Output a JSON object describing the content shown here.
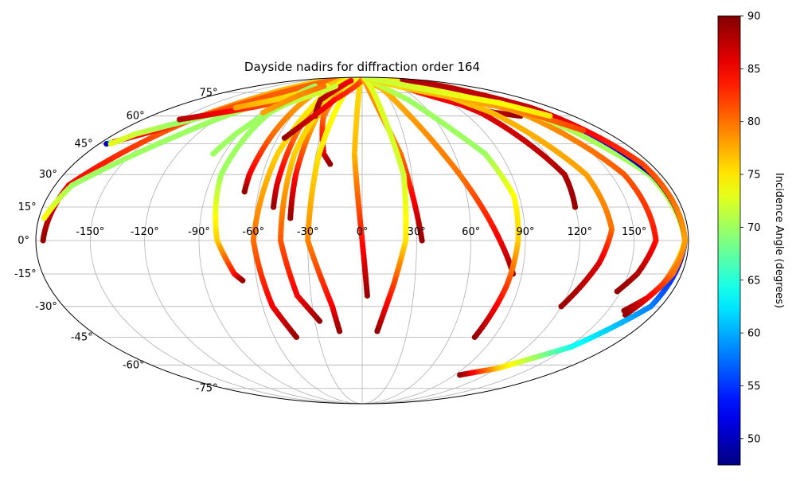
{
  "chart_data": {
    "type": "scatter",
    "projection": "mollweide",
    "title": "Dayside nadirs for diffraction order 164",
    "lon_ticks": [
      "-150°",
      "-120°",
      "-90°",
      "-60°",
      "-30°",
      "0°",
      "30°",
      "60°",
      "90°",
      "120°",
      "150°"
    ],
    "lon_tick_values": [
      -150,
      -120,
      -90,
      -60,
      -30,
      0,
      30,
      60,
      90,
      120,
      150
    ],
    "lat_ticks": [
      "-75°",
      "-60°",
      "-45°",
      "-30°",
      "-15°",
      "0°",
      "15°",
      "30°",
      "45°",
      "60°",
      "75°"
    ],
    "lat_tick_values": [
      -75,
      -60,
      -45,
      -30,
      -15,
      0,
      15,
      30,
      45,
      60,
      75
    ],
    "grid": true,
    "colormap": "jet",
    "colorbar": {
      "label": "Incidence Angle (degrees)",
      "min": 47.5,
      "max": 90,
      "ticks": [
        "50",
        "55",
        "60",
        "65",
        "70",
        "75",
        "80",
        "85",
        "90"
      ],
      "tick_values": [
        50,
        55,
        60,
        65,
        70,
        75,
        80,
        85,
        90
      ]
    },
    "series": [
      {
        "points": [
          [
            -1,
            90
          ],
          [
            30,
            78
          ],
          [
            60,
            28
          ],
          [
            76,
            0
          ],
          [
            85,
            -15
          ]
        ],
        "values": [
          75,
          77,
          80,
          85,
          89
        ]
      },
      {
        "points": [
          [
            -95,
            90
          ],
          [
            -140,
            58
          ],
          [
            -172,
            25
          ],
          [
            -176,
            0
          ]
        ],
        "values": [
          75,
          80,
          85,
          89
        ]
      },
      {
        "points": [
          [
            -65,
            90
          ],
          [
            -120,
            58
          ],
          [
            -170,
            25
          ],
          [
            -177,
            10
          ]
        ],
        "values": [
          73,
          70,
          70,
          74
        ]
      },
      {
        "points": [
          [
            -80,
            88
          ],
          [
            -145,
            55
          ],
          [
            -172,
            46
          ],
          [
            -175,
            45
          ]
        ],
        "values": [
          80,
          82,
          87,
          50
        ]
      },
      {
        "points": [
          [
            -80,
            80
          ],
          [
            -85,
            30
          ],
          [
            -80,
            0
          ],
          [
            -72,
            -15
          ],
          [
            -68,
            -18
          ]
        ],
        "values": [
          70,
          70,
          76,
          84,
          89
        ]
      },
      {
        "points": [
          [
            -58,
            88
          ],
          [
            -65,
            50
          ],
          [
            -68,
            30
          ],
          [
            -68,
            22
          ]
        ],
        "values": [
          76,
          80,
          85,
          89
        ]
      },
      {
        "points": [
          [
            -45,
            88
          ],
          [
            -48,
            50
          ],
          [
            -50,
            25
          ],
          [
            -50,
            15
          ]
        ],
        "values": [
          76,
          80,
          86,
          89
        ]
      },
      {
        "points": [
          [
            -42,
            88
          ],
          [
            -55,
            40
          ],
          [
            -60,
            0
          ],
          [
            -54,
            -30
          ],
          [
            -45,
            -45
          ]
        ],
        "values": [
          74,
          76,
          80,
          85,
          89
        ]
      },
      {
        "points": [
          [
            -36,
            88
          ],
          [
            -38,
            60
          ],
          [
            -40,
            30
          ],
          [
            -40,
            10
          ]
        ],
        "values": [
          72,
          76,
          84,
          89
        ]
      },
      {
        "points": [
          [
            -35,
            88
          ],
          [
            -44,
            40
          ],
          [
            -45,
            0
          ],
          [
            -38,
            -25
          ],
          [
            -27,
            -37
          ]
        ],
        "values": [
          75,
          76,
          81,
          85,
          89
        ]
      },
      {
        "points": [
          [
            -28,
            88
          ],
          [
            -33,
            60
          ],
          [
            -25,
            40
          ],
          [
            -20,
            35
          ]
        ],
        "values": [
          74,
          80,
          86,
          89
        ]
      },
      {
        "points": [
          [
            -20,
            88
          ],
          [
            -28,
            40
          ],
          [
            -30,
            0
          ],
          [
            -18,
            -30
          ],
          [
            -15,
            -42
          ]
        ],
        "values": [
          73,
          75,
          79,
          85,
          89
        ]
      },
      {
        "points": [
          [
            -30,
            85
          ],
          [
            -45,
            70
          ],
          [
            -40,
            60
          ]
        ],
        "values": [
          85,
          88,
          89
        ]
      },
      {
        "points": [
          [
            -4,
            88
          ],
          [
            -5,
            40
          ],
          [
            0,
            0
          ],
          [
            3,
            -25
          ]
        ],
        "values": [
          75,
          77,
          84,
          89
        ]
      },
      {
        "points": [
          [
            5,
            89
          ],
          [
            -30,
            70
          ],
          [
            -55,
            48
          ]
        ],
        "values": [
          80,
          84,
          89
        ]
      },
      {
        "points": [
          [
            5,
            89
          ],
          [
            25,
            40
          ],
          [
            33,
            0
          ]
        ],
        "values": [
          78,
          80,
          89
        ]
      },
      {
        "points": [
          [
            12,
            88
          ],
          [
            25,
            30
          ],
          [
            24,
            0
          ],
          [
            18,
            -20
          ],
          [
            10,
            -42
          ]
        ],
        "values": [
          73,
          72,
          75,
          82,
          89
        ]
      },
      {
        "points": [
          [
            18,
            88
          ],
          [
            50,
            70
          ],
          [
            80,
            40
          ],
          [
            87,
            20
          ],
          [
            86,
            0
          ],
          [
            83,
            -20
          ],
          [
            77,
            -45
          ]
        ],
        "values": [
          73,
          70,
          70,
          74,
          76,
          82,
          89
        ]
      },
      {
        "points": [
          [
            50,
            88
          ],
          [
            75,
            75
          ],
          [
            110,
            63
          ],
          [
            135,
            60
          ]
        ],
        "values": [
          80,
          84,
          87,
          89
        ]
      },
      {
        "points": [
          [
            78,
            82
          ],
          [
            105,
            62
          ],
          [
            122,
            30
          ],
          [
            120,
            15
          ]
        ],
        "values": [
          84,
          86,
          88,
          89
        ]
      },
      {
        "points": [
          [
            80,
            86
          ],
          [
            115,
            62
          ],
          [
            135,
            30
          ],
          [
            138,
            5
          ],
          [
            132,
            -10
          ],
          [
            120,
            -30
          ]
        ],
        "values": [
          76,
          77,
          78,
          80,
          86,
          89
        ]
      },
      {
        "points": [
          [
            95,
            88
          ],
          [
            140,
            62
          ],
          [
            158,
            30
          ],
          [
            162,
            0
          ],
          [
            155,
            -15
          ],
          [
            148,
            -23
          ]
        ],
        "values": [
          74,
          78,
          81,
          84,
          88,
          89
        ]
      },
      {
        "points": [
          [
            110,
            87
          ],
          [
            150,
            60
          ],
          [
            173,
            30
          ],
          [
            178,
            0
          ],
          [
            172,
            -20
          ],
          [
            163,
            -34
          ]
        ],
        "values": [
          75,
          71,
          70,
          73,
          82,
          89
        ]
      },
      {
        "points": [
          [
            130,
            86
          ],
          [
            162,
            60
          ],
          [
            175,
            30
          ],
          [
            178,
            0
          ],
          [
            174,
            -30
          ],
          [
            152,
            -50
          ],
          [
            120,
            -62
          ],
          [
            95,
            -66
          ]
        ],
        "values": [
          88,
          56,
          48,
          50,
          58,
          64,
          76,
          89
        ]
      },
      {
        "points": [
          [
            125,
            86
          ],
          [
            160,
            65
          ],
          [
            175,
            35
          ],
          [
            178,
            0
          ],
          [
            175,
            -15
          ],
          [
            168,
            -26
          ],
          [
            160,
            -32
          ]
        ],
        "values": [
          88,
          87,
          82,
          78,
          80,
          85,
          89
        ]
      },
      {
        "points": [
          [
            -172,
            45
          ],
          [
            -165,
            50
          ],
          [
            -150,
            55
          ],
          [
            -132,
            60
          ],
          [
            -110,
            65
          ],
          [
            -95,
            70
          ],
          [
            -80,
            73
          ]
        ],
        "values": [
          73,
          72,
          70,
          70,
          70,
          72,
          74
        ]
      },
      {
        "points": [
          [
            -150,
            58
          ],
          [
            -125,
            62
          ],
          [
            -100,
            66
          ],
          [
            -80,
            70
          ]
        ],
        "values": [
          88,
          85,
          82,
          80
        ]
      },
      {
        "points": [
          [
            -120,
            65
          ],
          [
            -95,
            70
          ],
          [
            -70,
            76
          ],
          [
            -60,
            80
          ]
        ],
        "values": [
          78,
          76,
          75,
          74
        ]
      },
      {
        "points": [
          [
            -45,
            80
          ],
          [
            -55,
            75
          ],
          [
            -65,
            72
          ],
          [
            -75,
            68
          ],
          [
            -85,
            60
          ],
          [
            -92,
            50
          ],
          [
            -97,
            40
          ]
        ],
        "values": [
          72,
          72,
          72,
          71,
          70,
          70,
          70
        ]
      },
      {
        "points": [
          [
            -65,
            80
          ],
          [
            -75,
            74
          ],
          [
            -88,
            62
          ]
        ],
        "values": [
          80,
          79,
          78
        ]
      },
      {
        "points": [
          [
            20,
            89
          ],
          [
            60,
            80
          ],
          [
            100,
            72
          ],
          [
            130,
            66
          ],
          [
            150,
            60
          ],
          [
            165,
            52
          ]
        ],
        "values": [
          76,
          76,
          77,
          78,
          80,
          82
        ]
      },
      {
        "points": [
          [
            25,
            89
          ],
          [
            70,
            82
          ],
          [
            110,
            74
          ],
          [
            140,
            68
          ],
          [
            160,
            60
          ]
        ],
        "values": [
          72,
          72,
          73,
          74,
          75
        ]
      }
    ]
  }
}
